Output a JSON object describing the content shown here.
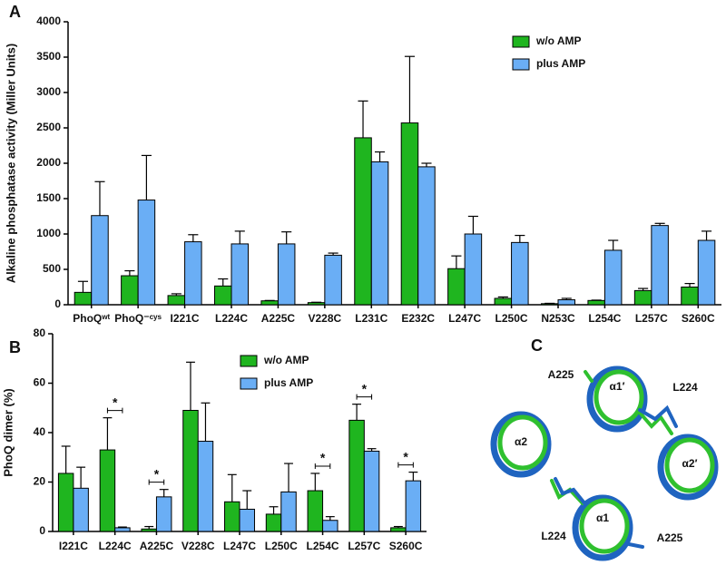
{
  "chart_data": [
    {
      "type": "bar",
      "panel_label": "A",
      "ylabel": "Alkaline phosphatase activity (Miller Units)",
      "categories": [
        "PhoQʷᵗ",
        "PhoQ⁻ᶜʸˢ",
        "I221C",
        "L224C",
        "A225C",
        "V228C",
        "L231C",
        "E232C",
        "L247C",
        "L250C",
        "N253C",
        "L254C",
        "L257C",
        "S260C"
      ],
      "series": [
        {
          "name": "w/o AMP",
          "color": "#1fb51f",
          "values": [
            175,
            410,
            130,
            265,
            55,
            30,
            2360,
            2570,
            510,
            90,
            15,
            60,
            200,
            250
          ],
          "errors": [
            155,
            70,
            25,
            100,
            5,
            5,
            520,
            940,
            180,
            20,
            5,
            5,
            30,
            50
          ]
        },
        {
          "name": "plus AMP",
          "color": "#6aaef5",
          "values": [
            1260,
            1480,
            890,
            860,
            860,
            700,
            2020,
            1950,
            1000,
            880,
            70,
            770,
            1120,
            910
          ],
          "errors": [
            480,
            630,
            100,
            180,
            170,
            30,
            140,
            50,
            250,
            100,
            20,
            140,
            30,
            130
          ]
        }
      ],
      "ylim": [
        0,
        4000
      ],
      "yticks": [
        0,
        500,
        1000,
        1500,
        2000,
        2500,
        3000,
        3500,
        4000
      ],
      "legend": "upper right"
    },
    {
      "type": "bar",
      "panel_label": "B",
      "ylabel": "PhoQ dimer (%)",
      "categories": [
        "I221C",
        "L224C",
        "A225C",
        "V228C",
        "L247C",
        "L250C",
        "L254C",
        "L257C",
        "S260C"
      ],
      "series": [
        {
          "name": "w/o AMP",
          "color": "#1fb51f",
          "values": [
            23.5,
            33,
            1,
            49,
            12,
            7,
            16.5,
            45,
            1.5
          ],
          "errors": [
            11,
            13,
            1,
            19.5,
            11,
            3,
            7,
            6.5,
            0.5
          ]
        },
        {
          "name": "plus AMP",
          "color": "#6aaef5",
          "values": [
            17.5,
            1.5,
            14,
            36.5,
            9,
            16,
            4.5,
            32.5,
            20.5
          ],
          "errors": [
            8.5,
            0.3,
            3,
            15.5,
            7.5,
            11.5,
            1.5,
            1,
            3.5
          ]
        }
      ],
      "significance": [
        null,
        "*",
        "*",
        null,
        null,
        null,
        "*",
        "*",
        "*"
      ],
      "ylim": [
        0,
        80
      ],
      "yticks": [
        0,
        20,
        40,
        60,
        80
      ],
      "legend": "upper center"
    }
  ],
  "structure": {
    "panel_label": "C",
    "labels": [
      "A225",
      "α1′",
      "L224",
      "α2",
      "α2′",
      "L224",
      "α1",
      "A225"
    ]
  }
}
